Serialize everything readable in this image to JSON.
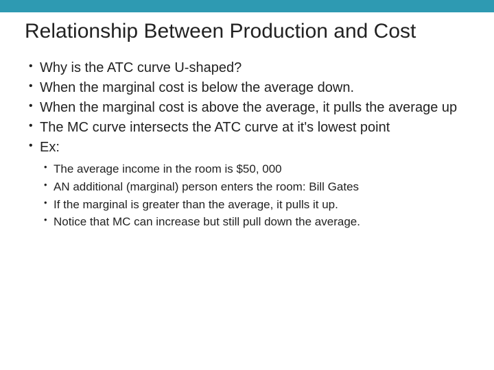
{
  "accent_color": "#2e9ab2",
  "background_color": "#ffffff",
  "text_color": "#222222",
  "title": {
    "text": "Relationship Between Production and Cost",
    "fontsize": 30,
    "fontweight": 400
  },
  "bullets": {
    "fontsize": 20,
    "items": [
      "Why is the ATC curve U-shaped?",
      "When the marginal cost is below the average down.",
      "When the marginal cost is above the average, it pulls the average up",
      "The MC curve intersects the ATC curve at it's lowest point",
      "Ex:"
    ]
  },
  "sub_bullets": {
    "fontsize": 17,
    "items": [
      "The average income in the room is $50, 000",
      "AN additional (marginal) person enters the room: Bill Gates",
      "If the marginal is greater than the average, it pulls it up.",
      "Notice that MC can increase but still pull down the average."
    ]
  }
}
